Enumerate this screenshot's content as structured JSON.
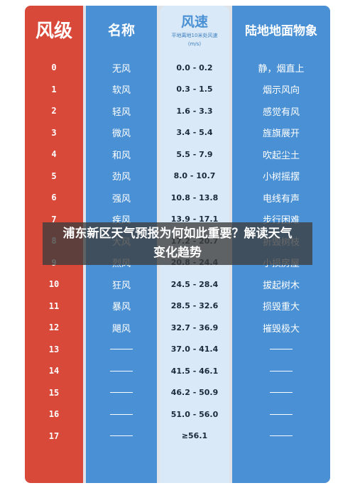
{
  "header": {
    "level": "风级",
    "name": "名称",
    "speed_title": "风速",
    "speed_sub": "平地离地10米处风速",
    "speed_unit": "(m/s)",
    "land": "陆地地面物象"
  },
  "rows": [
    {
      "level": "0",
      "name": "无风",
      "speed": "0.0 - 0.2",
      "land": "静，烟直上"
    },
    {
      "level": "1",
      "name": "软风",
      "speed": "0.3 - 1.5",
      "land": "烟示风向"
    },
    {
      "level": "2",
      "name": "轻风",
      "speed": "1.6 - 3.3",
      "land": "感觉有风"
    },
    {
      "level": "3",
      "name": "微风",
      "speed": "3.4 - 5.4",
      "land": "旌旗展开"
    },
    {
      "level": "4",
      "name": "和风",
      "speed": "5.5 - 7.9",
      "land": "吹起尘土"
    },
    {
      "level": "5",
      "name": "劲风",
      "speed": "8.0 - 10.7",
      "land": "小树摇摆"
    },
    {
      "level": "6",
      "name": "强风",
      "speed": "10.8 - 13.8",
      "land": "电线有声"
    },
    {
      "level": "7",
      "name": "疾风",
      "speed": "13.9 - 17.1",
      "land": "步行困难"
    },
    {
      "level": "8",
      "name": "大风",
      "speed": "17.2 - 20.7",
      "land": "折毁树枝"
    },
    {
      "level": "9",
      "name": "烈风",
      "speed": "20.8 - 24.4",
      "land": "小损房屋"
    },
    {
      "level": "10",
      "name": "狂风",
      "speed": "24.5 - 28.4",
      "land": "拔起树木"
    },
    {
      "level": "11",
      "name": "暴风",
      "speed": "28.5 - 32.6",
      "land": "损毁重大"
    },
    {
      "level": "12",
      "name": "飓风",
      "speed": "32.7 - 36.9",
      "land": "摧毁极大"
    },
    {
      "level": "13",
      "name": "",
      "speed": "37.0 - 41.4",
      "land": ""
    },
    {
      "level": "14",
      "name": "",
      "speed": "41.5 - 46.1",
      "land": ""
    },
    {
      "level": "15",
      "name": "",
      "speed": "46.2 - 50.9",
      "land": ""
    },
    {
      "level": "16",
      "name": "",
      "speed": "51.0 - 56.0",
      "land": ""
    },
    {
      "level": "17",
      "name": "",
      "speed": "≥56.1",
      "land": ""
    }
  ],
  "overlay_title": "浦东新区天气预报为何如此重要？解读天气变化趋势"
}
